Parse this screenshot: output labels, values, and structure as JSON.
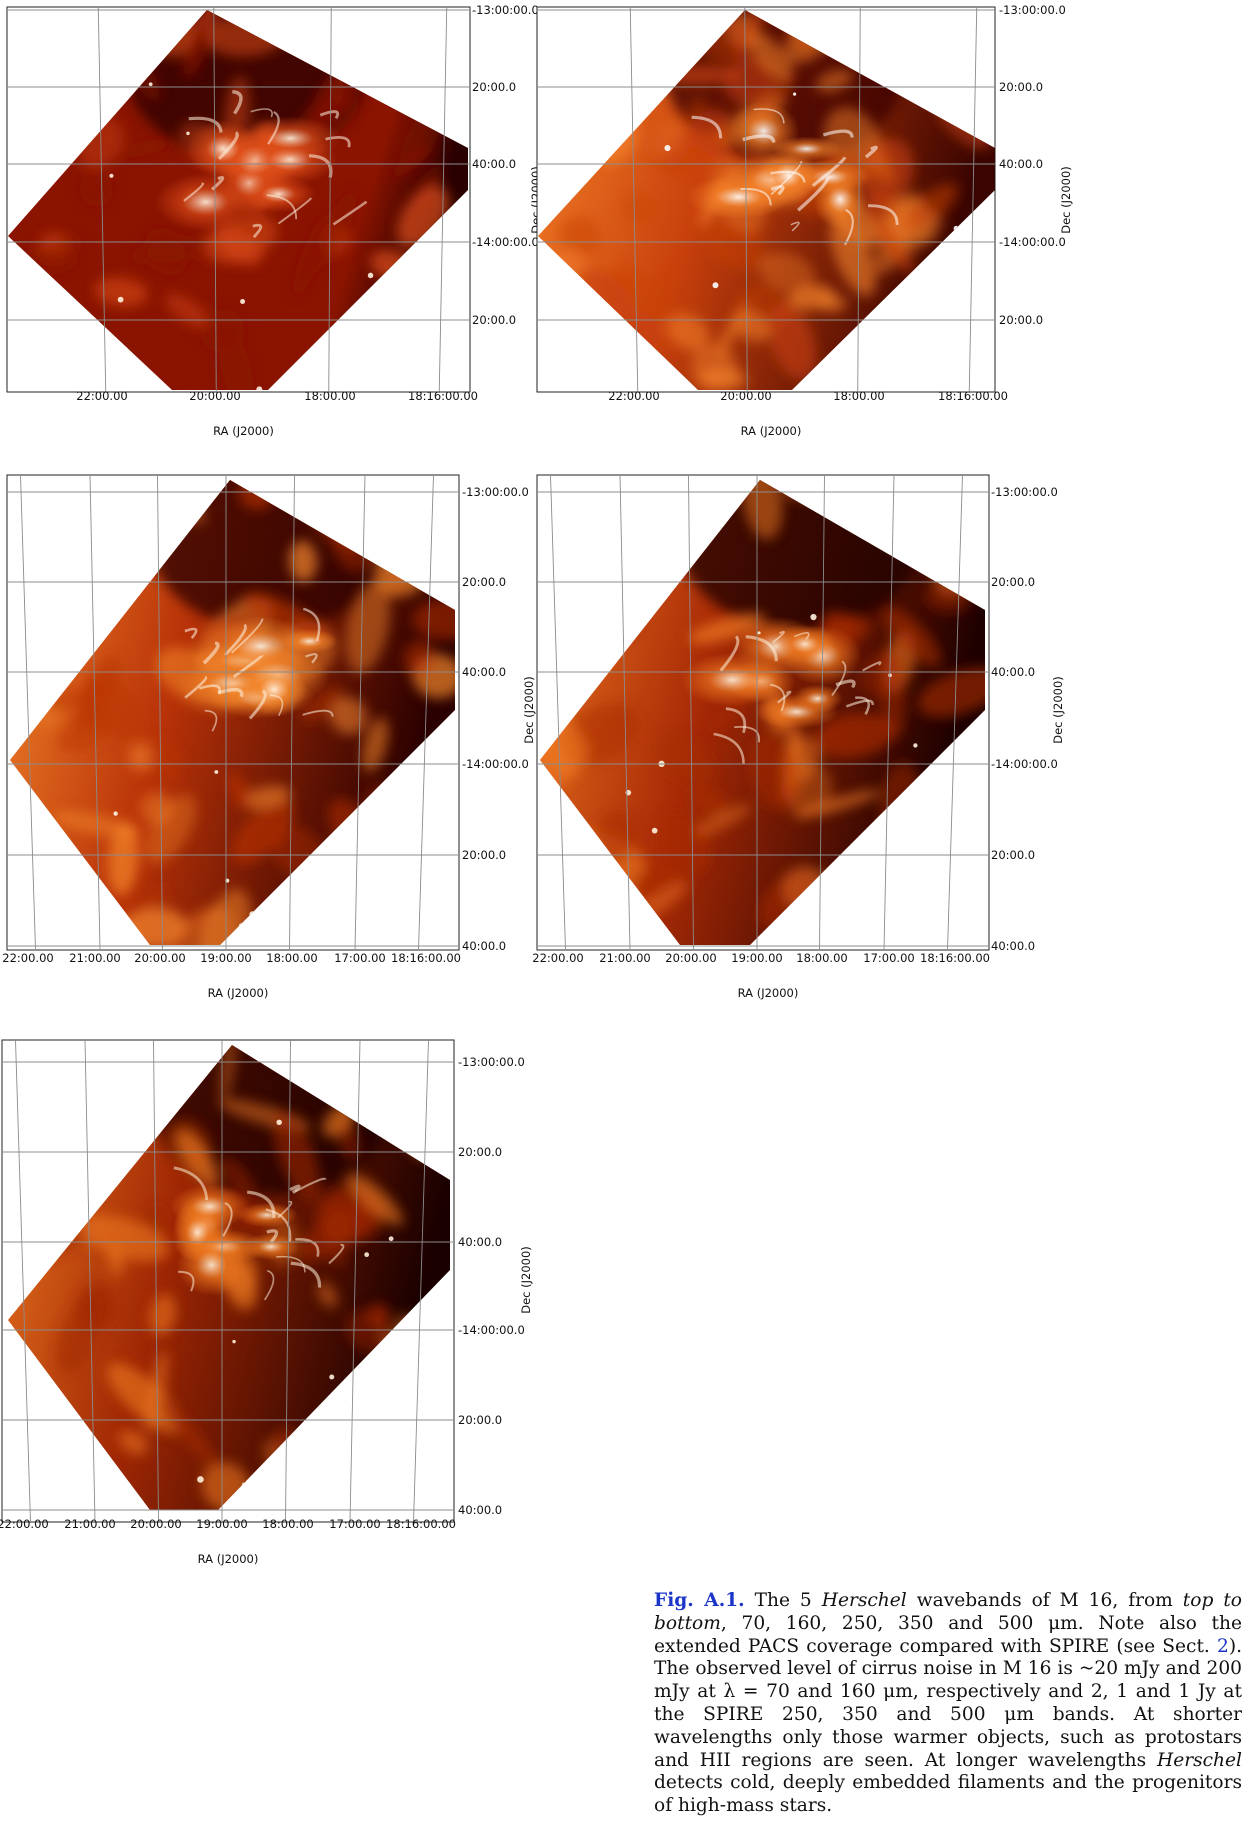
{
  "panels": [
    {
      "id": "70um",
      "ra_ticks": [
        "22:00.00",
        "20:00.00",
        "18:00.00",
        "18:16:00.00"
      ],
      "dec_ticks": [
        "-13:00:00.0",
        "20:00.0",
        "40:00.0",
        "-14:00:00.0",
        "20:00.0"
      ],
      "xlabel": "RA (J2000)",
      "ylabel": "Dec (J2000)",
      "colors": {
        "bg": "#2a0000",
        "mid": "#8a1400",
        "hi": "#e0501a",
        "peak": "#fff3e0"
      }
    },
    {
      "id": "160um",
      "ra_ticks": [
        "22:00.00",
        "20:00.00",
        "18:00.00",
        "18:16:00.00"
      ],
      "dec_ticks": [
        "-13:00:00.0",
        "20:00.0",
        "40:00.0",
        "-14:00:00.0",
        "20:00.0"
      ],
      "xlabel": "RA (J2000)",
      "ylabel": "Dec (J2000)",
      "colors": {
        "bg": "#3a0400",
        "mid": "#c8400c",
        "hi": "#f6842a",
        "peak": "#ffffff"
      }
    },
    {
      "id": "250um",
      "ra_ticks": [
        "22:00.00",
        "21:00.00",
        "20:00.00",
        "19:00.00",
        "18:00.00",
        "17:00.00",
        "18:16:00.00"
      ],
      "dec_ticks": [
        "-13:00:00.0",
        "20:00.0",
        "40:00.0",
        "-14:00:00.0",
        "20:00.0",
        "40:00.0"
      ],
      "xlabel": "RA (J2000)",
      "ylabel": "Dec (J2000)",
      "colors": {
        "bg": "#2a0000",
        "mid": "#b83208",
        "hi": "#f5882c",
        "peak": "#fff6e6"
      }
    },
    {
      "id": "350um",
      "ra_ticks": [
        "22:00.00",
        "21:00.00",
        "20:00.00",
        "19:00.00",
        "18:00.00",
        "17:00.00",
        "18:16:00.00"
      ],
      "dec_ticks": [
        "-13:00:00.0",
        "20:00.0",
        "40:00.0",
        "-14:00:00.0",
        "20:00.0",
        "40:00.0"
      ],
      "xlabel": "RA (J2000)",
      "ylabel": "Dec (J2000)",
      "colors": {
        "bg": "#1e0000",
        "mid": "#a82a06",
        "hi": "#f07a22",
        "peak": "#fff2de"
      }
    },
    {
      "id": "500um",
      "ra_ticks": [
        "22:00.00",
        "21:00.00",
        "20:00.00",
        "19:00.00",
        "18:00.00",
        "17:00.00",
        "18:16:00.00"
      ],
      "dec_ticks": [
        "-13:00:00.0",
        "20:00.0",
        "40:00.0",
        "-14:00:00.0",
        "20:00.0",
        "40:00.0"
      ],
      "xlabel": "RA (J2000)",
      "ylabel": "Dec (J2000)",
      "colors": {
        "bg": "#1a0000",
        "mid": "#9e2604",
        "hi": "#ef7a20",
        "peak": "#fff0da"
      }
    }
  ],
  "caption": {
    "label": "Fig. A.1.",
    "t1": " The 5 ",
    "herschel": "Herschel",
    "t2": " wavebands of M 16, from ",
    "t2i": "top to bottom",
    "t3": ", 70, 160, 250, 350 and 500 μm. Note also the extended PACS coverage compared with SPIRE (see Sect. ",
    "sect": "2",
    "t4": "). The observed level of cirrus noise in M 16 is ~20 mJy and 200 mJy at λ = 70 and 160 μm, respectively and 2, 1 and 1 Jy at the SPIRE 250, 350 and 500 μm bands. At shorter wavelengths only those warmer objects, such as protostars and H",
    "hii": "II",
    "t5": " regions are seen. At longer wavelengths ",
    "herschel2": "Herschel",
    "t6": " detects cold, deeply embedded filaments and the progenitors of high-mass stars."
  }
}
